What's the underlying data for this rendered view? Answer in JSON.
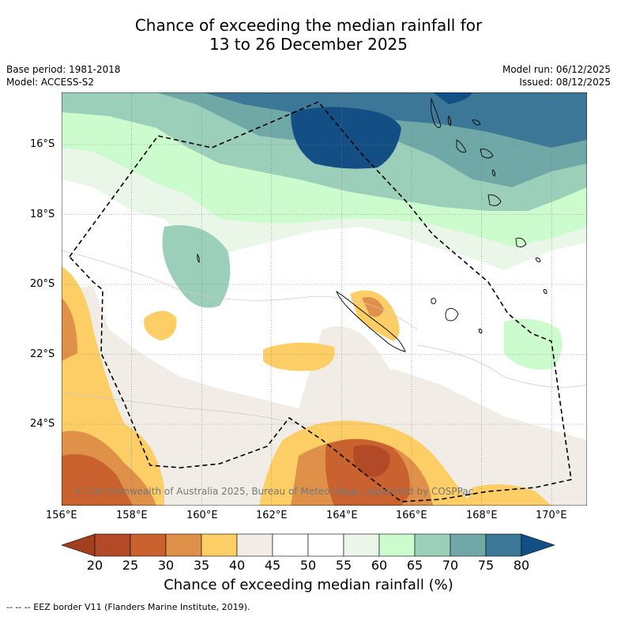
{
  "title": {
    "line1": "Chance of exceeding the median rainfall for",
    "line2": "13 to 26 December 2025"
  },
  "meta": {
    "base_period": "Base period: 1981-2018",
    "model": "Model: ACCESS-S2",
    "model_run": "Model run: 06/12/2025",
    "issued": "Issued: 08/12/2025"
  },
  "map": {
    "lat_labels": [
      "16°S",
      "18°S",
      "20°S",
      "22°S",
      "24°S"
    ],
    "lon_labels": [
      "156°E",
      "158°E",
      "160°E",
      "162°E",
      "164°E",
      "166°E",
      "168°E",
      "170°E"
    ],
    "copyright": "© Commonwealth of Australia 2025, Bureau of Meteorology, supported by COSPPac"
  },
  "colorbar": {
    "title": "Chance of exceeding median rainfall (%)",
    "labels": [
      "20",
      "25",
      "30",
      "35",
      "40",
      "45",
      "50",
      "55",
      "60",
      "65",
      "70",
      "75",
      "80"
    ],
    "colors": [
      "#a0401f",
      "#b24a28",
      "#c9622f",
      "#df914a",
      "#fdcd66",
      "#f1ede6",
      "#ffffff",
      "#ffffff",
      "#e9f6e8",
      "#ccfcce",
      "#9ccfb9",
      "#70a8a8",
      "#3d7797",
      "#134f85"
    ]
  },
  "legend": {
    "eez": "--  --  -- EEZ border V11 (Flanders Marine Institute, 2019)."
  }
}
